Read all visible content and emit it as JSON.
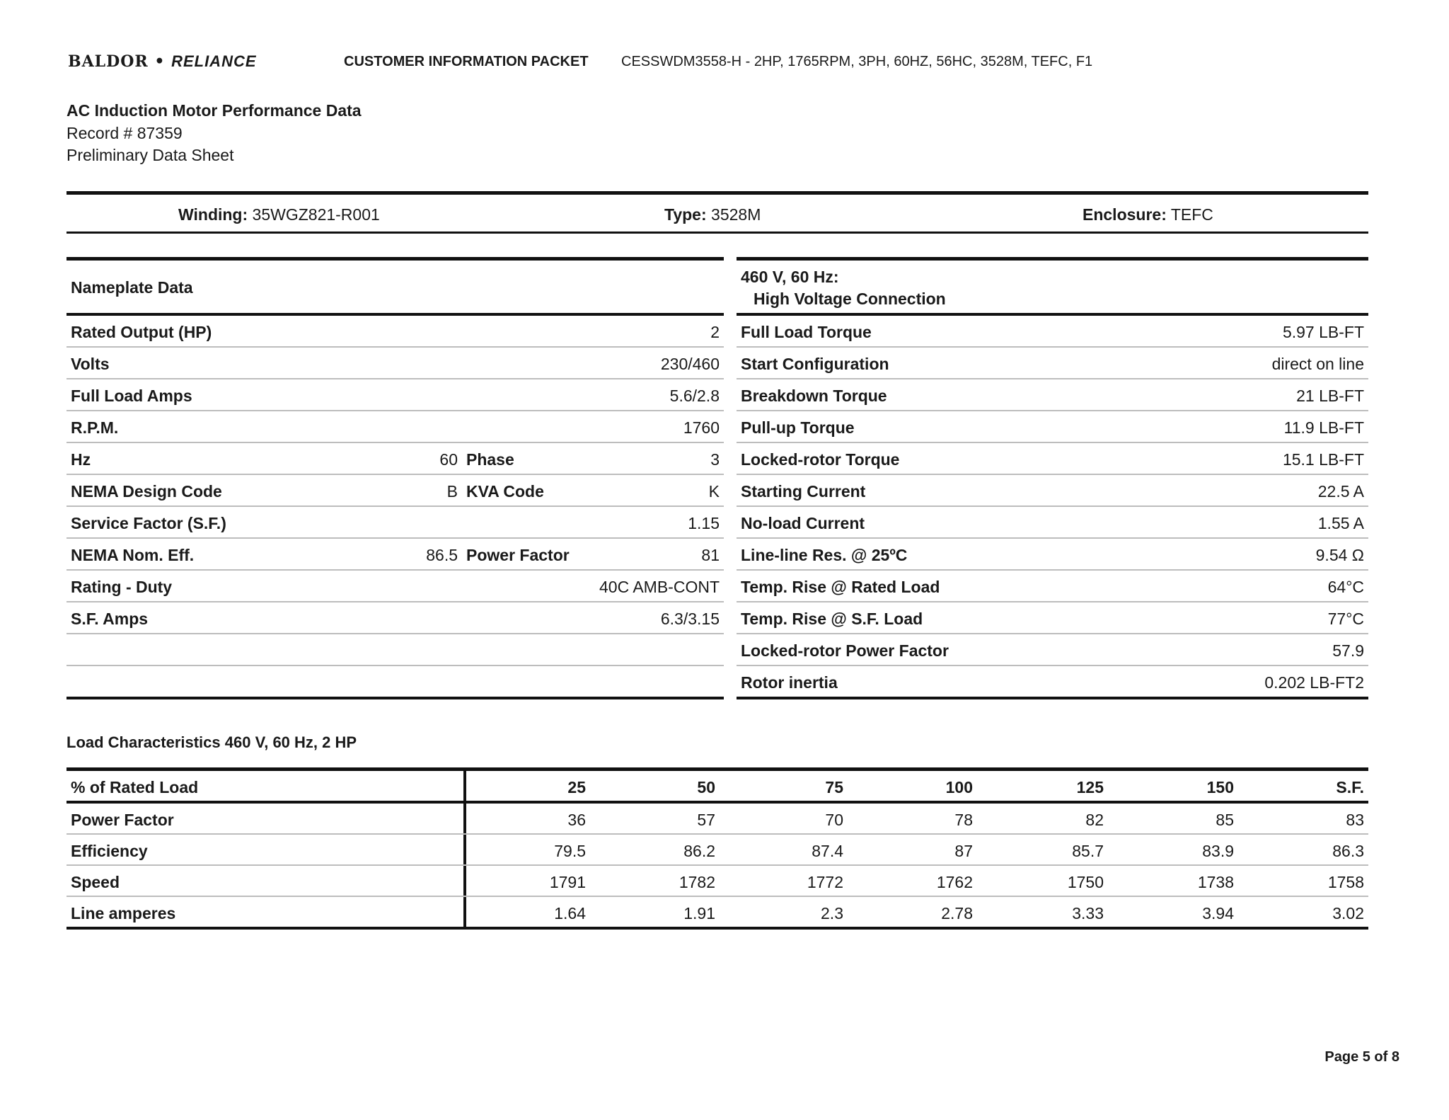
{
  "header": {
    "brand": "BALDOR",
    "brand2": "RELIANCE",
    "packet": "CUSTOMER INFORMATION PACKET",
    "model": "CESSWDM3558-H - 2HP, 1765RPM, 3PH, 60HZ, 56HC, 3528M, TEFC, F1"
  },
  "title": {
    "main": "AC Induction Motor Performance Data",
    "record": "Record # 87359",
    "sheet": "Preliminary Data Sheet"
  },
  "info": {
    "winding_label": "Winding:",
    "winding": "35WGZ821-R001",
    "type_label": "Type:",
    "type": "3528M",
    "enclosure_label": "Enclosure:",
    "enclosure": "TEFC"
  },
  "nameplate": {
    "title": "Nameplate Data",
    "rows": [
      {
        "label": "Rated Output (HP)",
        "value": "2"
      },
      {
        "label": "Volts",
        "value": "230/460"
      },
      {
        "label": "Full Load Amps",
        "value": "5.6/2.8"
      },
      {
        "label": "R.P.M.",
        "value": "1760"
      },
      {
        "label": "Hz",
        "mid": "60",
        "label2": "Phase",
        "value": "3"
      },
      {
        "label": "NEMA Design Code",
        "mid": "B",
        "label2": "KVA Code",
        "value": "K"
      },
      {
        "label": "Service Factor (S.F.)",
        "value": "1.15"
      },
      {
        "label": "NEMA Nom. Eff.",
        "mid": "86.5",
        "label2": "Power Factor",
        "value": "81"
      },
      {
        "label": "Rating - Duty",
        "value": "40C AMB-CONT"
      },
      {
        "label": "S.F. Amps",
        "value": "6.3/3.15"
      },
      {
        "label": "",
        "value": ""
      },
      {
        "label": "",
        "value": ""
      }
    ]
  },
  "connection": {
    "title1": "460 V, 60 Hz:",
    "title2": "High Voltage Connection",
    "rows": [
      {
        "label": "Full Load Torque",
        "value": "5.97 LB-FT"
      },
      {
        "label": "Start Configuration",
        "value": "direct on line"
      },
      {
        "label": "Breakdown Torque",
        "value": "21 LB-FT"
      },
      {
        "label": "Pull-up Torque",
        "value": "11.9 LB-FT"
      },
      {
        "label": "Locked-rotor Torque",
        "value": "15.1 LB-FT"
      },
      {
        "label": "Starting Current",
        "value": "22.5 A"
      },
      {
        "label": "No-load Current",
        "value": "1.55 A"
      },
      {
        "label": "Line-line Res. @ 25ºC",
        "value": "9.54 Ω"
      },
      {
        "label": "Temp. Rise @ Rated Load",
        "value": "64°C"
      },
      {
        "label": "Temp. Rise @ S.F. Load",
        "value": "77°C"
      },
      {
        "label": "Locked-rotor Power Factor",
        "value": "57.9"
      },
      {
        "label": "Rotor inertia",
        "value": "0.202 LB-FT2"
      }
    ]
  },
  "load": {
    "title": "Load Characteristics 460 V, 60 Hz, 2 HP",
    "columns": [
      "% of Rated Load",
      "25",
      "50",
      "75",
      "100",
      "125",
      "150",
      "S.F."
    ],
    "rows": [
      [
        "Power Factor",
        "36",
        "57",
        "70",
        "78",
        "82",
        "85",
        "83"
      ],
      [
        "Efficiency",
        "79.5",
        "86.2",
        "87.4",
        "87",
        "85.7",
        "83.9",
        "86.3"
      ],
      [
        "Speed",
        "1791",
        "1782",
        "1772",
        "1762",
        "1750",
        "1738",
        "1758"
      ],
      [
        "Line amperes",
        "1.64",
        "1.91",
        "2.3",
        "2.78",
        "3.33",
        "3.94",
        "3.02"
      ]
    ]
  },
  "footer": {
    "page": "Page 5 of 8"
  }
}
